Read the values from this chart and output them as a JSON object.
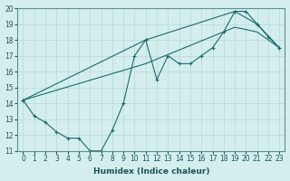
{
  "xlabel": "Humidex (Indice chaleur)",
  "bg_color": "#d4eeee",
  "line_color": "#1a6b6b",
  "grid_color": "#b8d8d8",
  "x_zigzag": [
    0,
    1,
    2,
    3,
    4,
    5,
    6,
    7,
    8,
    9,
    10,
    11,
    12,
    13,
    14,
    15,
    16,
    17,
    18,
    19,
    20,
    21,
    22,
    23
  ],
  "y_zigzag": [
    14.2,
    13.2,
    12.8,
    12.2,
    11.8,
    11.8,
    11.0,
    11.0,
    12.3,
    14.0,
    17.0,
    18.0,
    15.5,
    17.0,
    16.5,
    16.5,
    17.0,
    17.5,
    18.5,
    19.8,
    19.8,
    19.0,
    18.2,
    17.5
  ],
  "x_upper": [
    0,
    11,
    19,
    21,
    23
  ],
  "y_upper": [
    14.2,
    18.0,
    19.8,
    19.0,
    17.5
  ],
  "x_lower": [
    0,
    11,
    19,
    21,
    23
  ],
  "y_lower": [
    14.2,
    16.5,
    18.8,
    18.5,
    17.5
  ],
  "xlim": [
    -0.5,
    23.5
  ],
  "ylim": [
    11,
    20
  ],
  "yticks": [
    11,
    12,
    13,
    14,
    15,
    16,
    17,
    18,
    19,
    20
  ],
  "xticks": [
    0,
    1,
    2,
    3,
    4,
    5,
    6,
    7,
    8,
    9,
    10,
    11,
    12,
    13,
    14,
    15,
    16,
    17,
    18,
    19,
    20,
    21,
    22,
    23
  ],
  "marker_size": 2.5,
  "linewidth": 0.8,
  "tick_fontsize": 5.5,
  "xlabel_fontsize": 6.5
}
